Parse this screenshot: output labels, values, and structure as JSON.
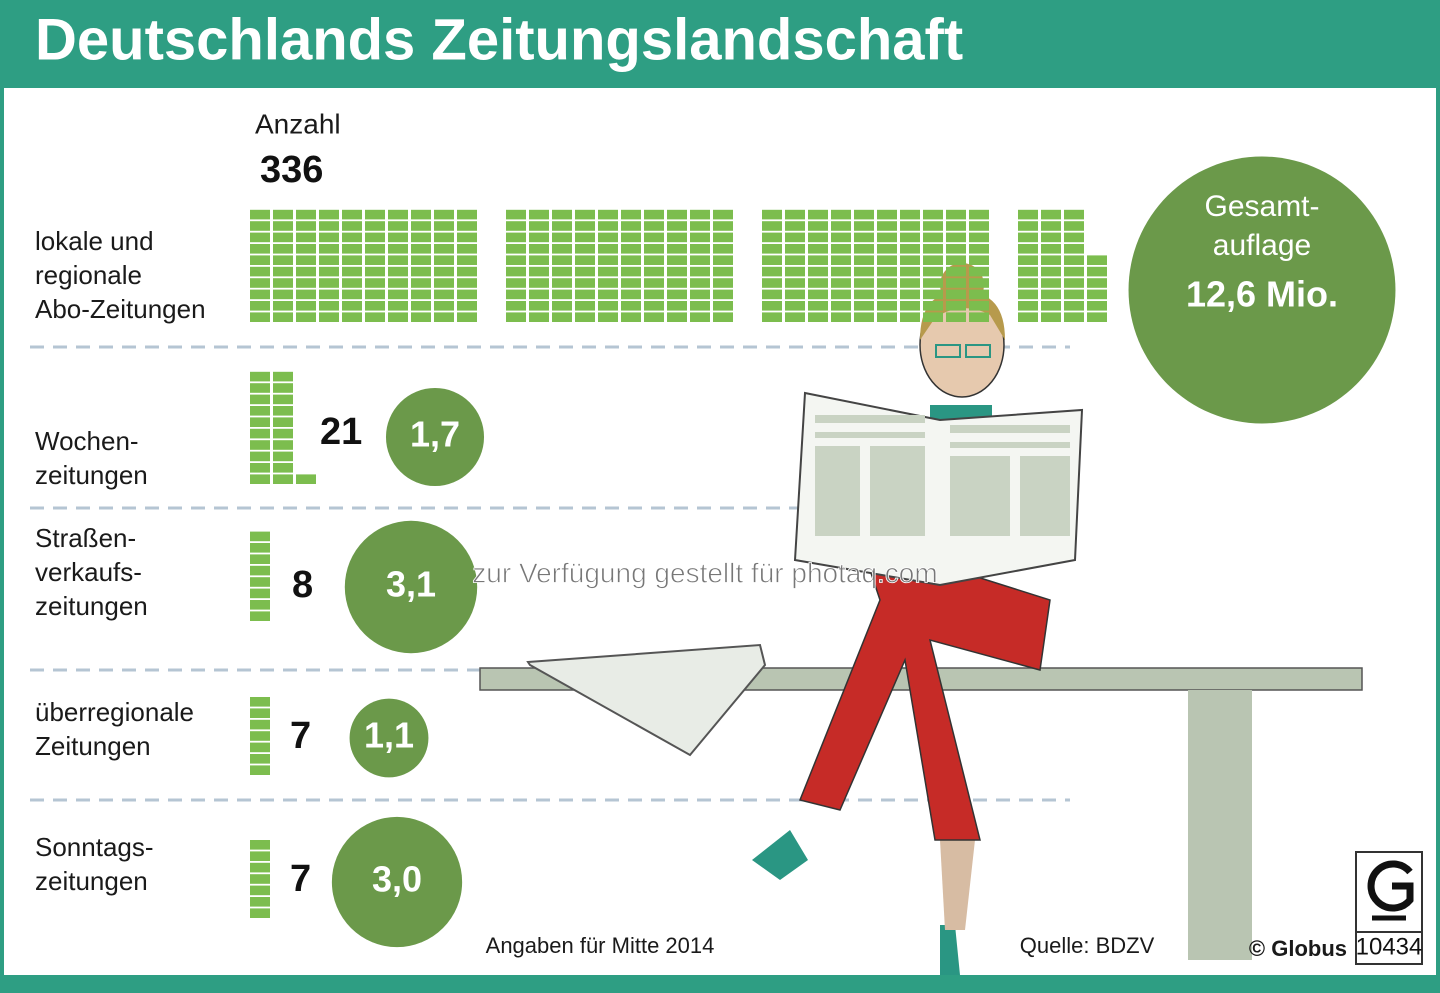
{
  "chart_data": {
    "type": "pictogram",
    "title": "Deutschlands Zeitungslandschaft",
    "count_heading": "Anzahl",
    "categories": [
      [
        "lokale und",
        "regionale",
        "Abo-Zeitungen"
      ],
      [
        "Wochen-",
        "zeitungen"
      ],
      [
        "Straßen-",
        "verkaufs-",
        "zeitungen"
      ],
      [
        "überregionale",
        "Zeitungen"
      ],
      [
        "Sonntags-",
        "zeitungen"
      ]
    ],
    "counts": [
      336,
      21,
      8,
      7,
      7
    ],
    "circulation_heading": [
      "Gesamt-",
      "auflage"
    ],
    "circulation": [
      12.6,
      1.7,
      3.1,
      1.1,
      3.0
    ],
    "circulation_labels": [
      "12,6 Mio.",
      "1,7",
      "3,1",
      "1,1",
      "3,0"
    ],
    "colors": {
      "header": "#2e9e83",
      "block": "#7cbd4e",
      "circle": "#6b994a"
    },
    "note": "Angaben für Mitte 2014",
    "source": "Quelle: BDZV",
    "credit": "© Globus",
    "id": "10434",
    "watermark": "zur Verfügung gestellt für photaq.com"
  }
}
